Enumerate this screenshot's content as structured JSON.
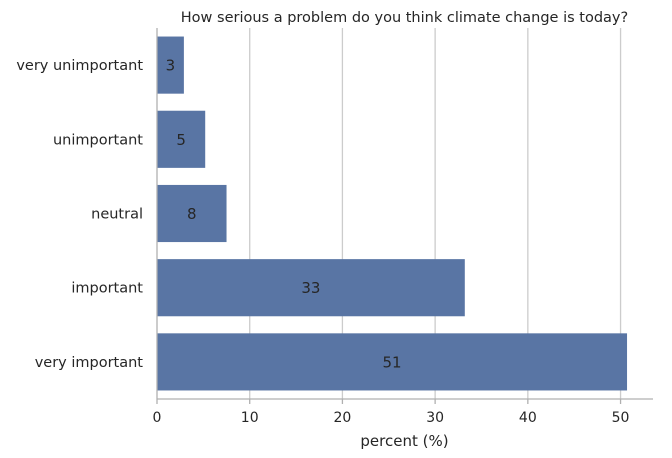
{
  "chart_data": {
    "type": "bar",
    "orientation": "horizontal",
    "title": "How serious a problem do you think climate change is today?",
    "xlabel": "percent (%)",
    "ylabel": "",
    "categories": [
      "very unimportant",
      "unimportant",
      "neutral",
      "important",
      "very important"
    ],
    "values": [
      2.9,
      5.2,
      7.5,
      33.2,
      50.7
    ],
    "data_labels": [
      "3",
      "5",
      "8",
      "33",
      "51"
    ],
    "xlim": [
      0,
      53.5
    ],
    "xticks": [
      0,
      10,
      20,
      30,
      40,
      50
    ],
    "xtick_labels": [
      "0",
      "10",
      "20",
      "30",
      "40",
      "50"
    ],
    "bar_color": "#5975a4",
    "grid": "vertical",
    "legend": "none"
  }
}
